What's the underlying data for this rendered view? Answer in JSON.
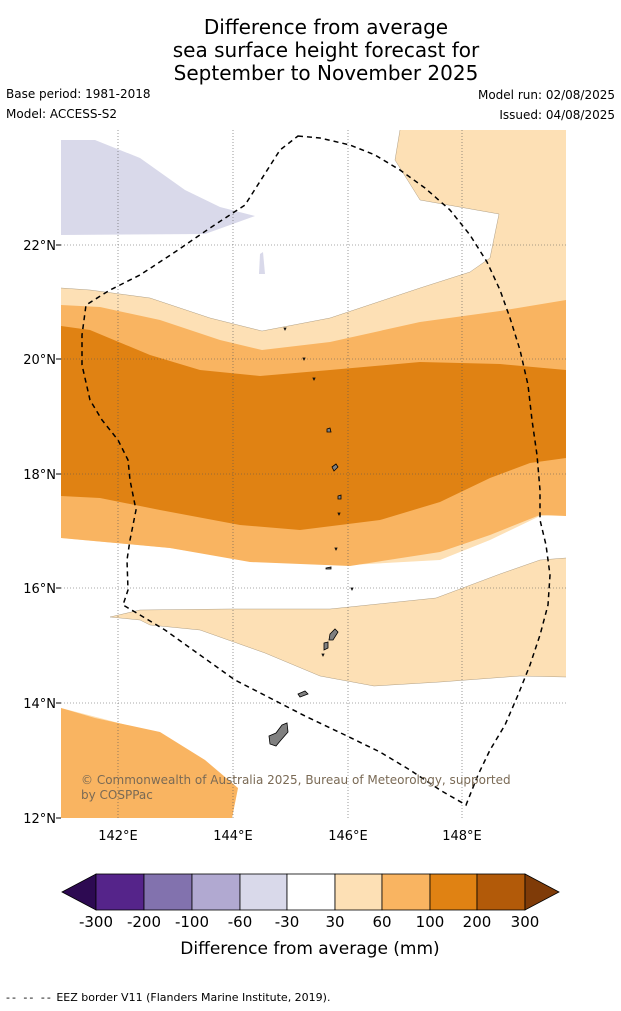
{
  "title": {
    "line1": "Difference from average",
    "line2": "sea surface height forecast for",
    "line3": "September to November 2025"
  },
  "meta": {
    "base_period": "Base period: 1981-2018",
    "model": "Model: ACCESS-S2",
    "model_run": "Model run: 02/08/2025",
    "issued": "Issued: 04/08/2025"
  },
  "map": {
    "lon_ticks": [
      "142°E",
      "144°E",
      "146°E",
      "148°E"
    ],
    "lat_ticks": [
      "22°N",
      "20°N",
      "18°N",
      "16°N",
      "14°N",
      "12°N"
    ],
    "copyright": "© Commonwealth of Australia 2025, Bureau of Meteorology, supported by COSPPac",
    "land_color": "#808080",
    "eez_style": "dashed-black"
  },
  "colorbar": {
    "labels": [
      "-300",
      "-200",
      "-100",
      "-60",
      "-30",
      "30",
      "60",
      "100",
      "200",
      "300"
    ],
    "colors": [
      "#2d0a52",
      "#55248a",
      "#8272ae",
      "#b1a9d1",
      "#d9d9ea",
      "#ffffff",
      "#fde0b5",
      "#f9b461",
      "#e08213",
      "#b25a09",
      "#7f3b08"
    ],
    "label": "Difference from average (mm)"
  },
  "footer": {
    "dashes": "-- -- --",
    "eez_text": "EEZ border V11 (Flanders Marine Institute, 2019)."
  }
}
